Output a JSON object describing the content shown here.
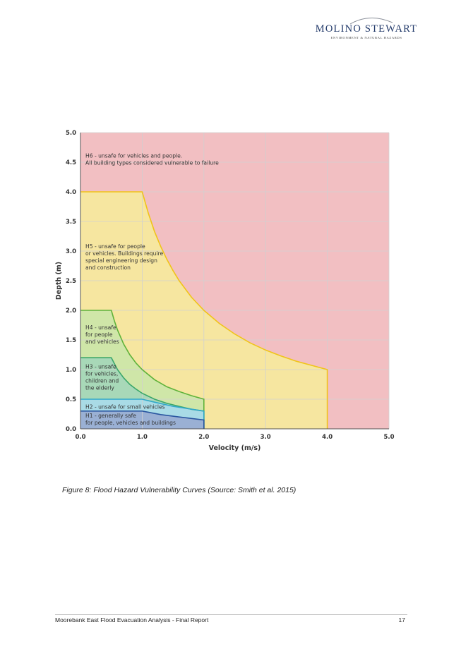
{
  "header": {
    "logo_name": "MOLINO STEWART",
    "logo_tagline": "ENVIRONMENT & NATURAL HAZARDS"
  },
  "colors": {
    "h6": "#f2bfc2",
    "h5": "#f6e6a0",
    "h5_line": "#f0c419",
    "h4": "#cfe6a8",
    "h4_line": "#5fb23a",
    "h3": "#a8d8b8",
    "h3_line": "#3aa66a",
    "h2": "#a9dbe6",
    "h2_line": "#31a8c8",
    "h1": "#9ab0d4",
    "h1_line": "#2a56a0",
    "grid": "#d0d0d0",
    "axis_text": "#333333"
  },
  "chart_data": {
    "type": "area",
    "title": "",
    "xlabel": "Velocity (m/s)",
    "ylabel": "Depth (m)",
    "xlim": [
      0,
      5
    ],
    "ylim": [
      0,
      5
    ],
    "xticks": [
      0,
      1,
      2,
      3,
      4,
      5
    ],
    "xtick_labels": [
      "0.0",
      "1.0",
      "2.0",
      "3.0",
      "4.0",
      "5.0"
    ],
    "yticks": [
      0,
      0.5,
      1,
      1.5,
      2,
      2.5,
      3,
      3.5,
      4,
      4.5,
      5
    ],
    "ytick_labels": [
      "0.0",
      "0.5",
      "1.0",
      "1.5",
      "2.0",
      "2.5",
      "3.0",
      "3.5",
      "4.0",
      "4.5",
      "5.0"
    ],
    "grid": true,
    "series": [
      {
        "name": "H6",
        "label_lines": [
          "H6 - unsafe for vehicles and people.",
          "All building types considered vulnerable to failure"
        ],
        "label_anchor": [
          0.08,
          4.58
        ],
        "boundary": [
          [
            0,
            0
          ],
          [
            5,
            0
          ],
          [
            5,
            5
          ],
          [
            0,
            5
          ]
        ]
      },
      {
        "name": "H5",
        "label_lines": [
          "H5 - unsafe for people",
          "or vehicles. Buildings require",
          "special engineering design",
          "and construction"
        ],
        "label_anchor": [
          0.08,
          3.05
        ],
        "boundary": [
          [
            0,
            0
          ],
          [
            0,
            4
          ],
          [
            1,
            4
          ],
          [
            1.1,
            3.64
          ],
          [
            1.2,
            3.33
          ],
          [
            1.3,
            3.08
          ],
          [
            1.4,
            2.86
          ],
          [
            1.5,
            2.67
          ],
          [
            1.6,
            2.5
          ],
          [
            1.8,
            2.22
          ],
          [
            2,
            2
          ],
          [
            2.25,
            1.78
          ],
          [
            2.5,
            1.6
          ],
          [
            2.75,
            1.45
          ],
          [
            3,
            1.33
          ],
          [
            3.25,
            1.23
          ],
          [
            3.5,
            1.14
          ],
          [
            3.75,
            1.07
          ],
          [
            4,
            1
          ],
          [
            4,
            0
          ]
        ]
      },
      {
        "name": "H4",
        "label_lines": [
          "H4 - unsafe",
          "for people",
          "and vehicles"
        ],
        "label_anchor": [
          0.08,
          1.68
        ],
        "boundary": [
          [
            0,
            0
          ],
          [
            0,
            2
          ],
          [
            0.5,
            2
          ],
          [
            0.55,
            1.82
          ],
          [
            0.6,
            1.67
          ],
          [
            0.7,
            1.43
          ],
          [
            0.8,
            1.25
          ],
          [
            0.9,
            1.11
          ],
          [
            1,
            1
          ],
          [
            1.2,
            0.83
          ],
          [
            1.4,
            0.71
          ],
          [
            1.6,
            0.63
          ],
          [
            1.8,
            0.56
          ],
          [
            2,
            0.5
          ],
          [
            2,
            0
          ]
        ]
      },
      {
        "name": "H3",
        "label_lines": [
          "H3 - unsafe",
          "for vehicles,",
          "children and",
          "the elderly"
        ],
        "label_anchor": [
          0.08,
          1.02
        ],
        "boundary": [
          [
            0,
            0
          ],
          [
            0,
            1.2
          ],
          [
            0.5,
            1.2
          ],
          [
            0.6,
            1
          ],
          [
            0.7,
            0.86
          ],
          [
            0.8,
            0.75
          ],
          [
            0.9,
            0.67
          ],
          [
            1,
            0.6
          ],
          [
            1.2,
            0.5
          ],
          [
            1.4,
            0.43
          ],
          [
            1.6,
            0.38
          ],
          [
            1.8,
            0.33
          ],
          [
            2,
            0.3
          ],
          [
            2,
            0
          ]
        ]
      },
      {
        "name": "H2",
        "label_lines": [
          "H2 - unsafe for small vehicles"
        ],
        "label_anchor": [
          0.08,
          0.34
        ],
        "boundary": [
          [
            0,
            0
          ],
          [
            0,
            0.5
          ],
          [
            1,
            0.5
          ],
          [
            1.2,
            0.45
          ],
          [
            1.5,
            0.38
          ],
          [
            2,
            0.3
          ],
          [
            2,
            0
          ]
        ]
      },
      {
        "name": "H1",
        "label_lines": [
          "H1 - generally safe",
          "for people, vehicles and buildings"
        ],
        "label_anchor": [
          0.08,
          0.19
        ],
        "boundary": [
          [
            0,
            0
          ],
          [
            0,
            0.3
          ],
          [
            1,
            0.3
          ],
          [
            1.3,
            0.24
          ],
          [
            1.6,
            0.2
          ],
          [
            2,
            0.15
          ],
          [
            2,
            0
          ]
        ]
      }
    ]
  },
  "caption": "Figure 8:   Flood Hazard Vulnerability Curves (Source: Smith et al. 2015)",
  "footer": {
    "title": "Moorebank East Flood Evacuation Analysis - Final Report",
    "page": "17"
  }
}
